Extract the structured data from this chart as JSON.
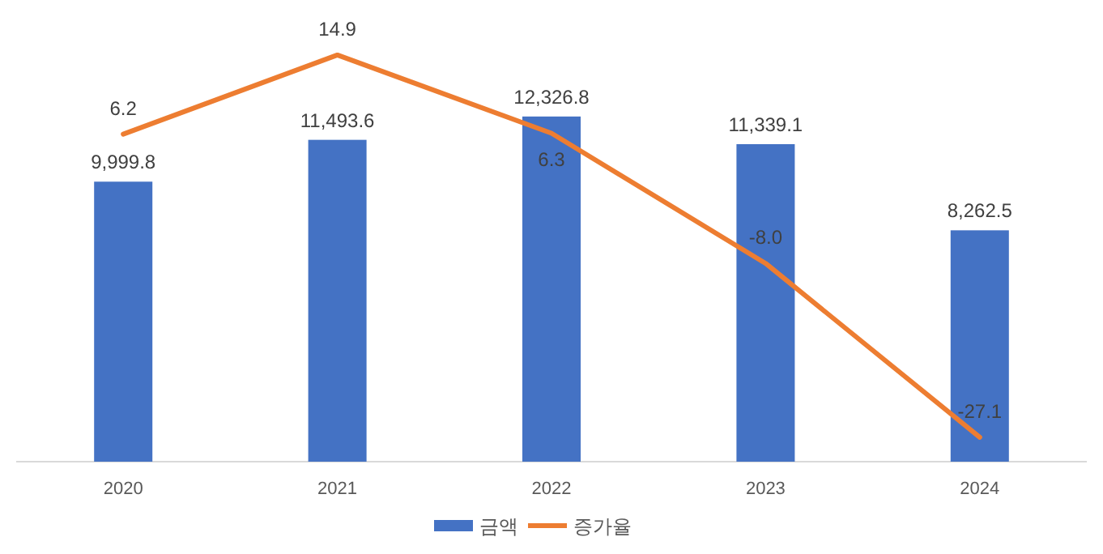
{
  "chart_data": {
    "type": "bar",
    "categories": [
      "2020",
      "2021",
      "2022",
      "2023",
      "2024"
    ],
    "series": [
      {
        "name": "금액",
        "color": "#4472c4",
        "values": [
          9999.8,
          11493.6,
          12326.8,
          11339.1,
          8262.5
        ],
        "value_labels": [
          "9,999.8",
          "11,493.6",
          "12,326.8",
          "11,339.1",
          "8,262.5"
        ]
      },
      {
        "name": "증가율",
        "type": "line",
        "axis": "y2",
        "color": "#ed7d31",
        "values": [
          6.2,
          14.9,
          6.3,
          -8.0,
          -27.1
        ],
        "value_labels": [
          "6.2",
          "14.9",
          "6.3",
          "-8.0",
          "-27.1"
        ]
      }
    ],
    "legend": "bottom",
    "tick_labels": "x"
  }
}
